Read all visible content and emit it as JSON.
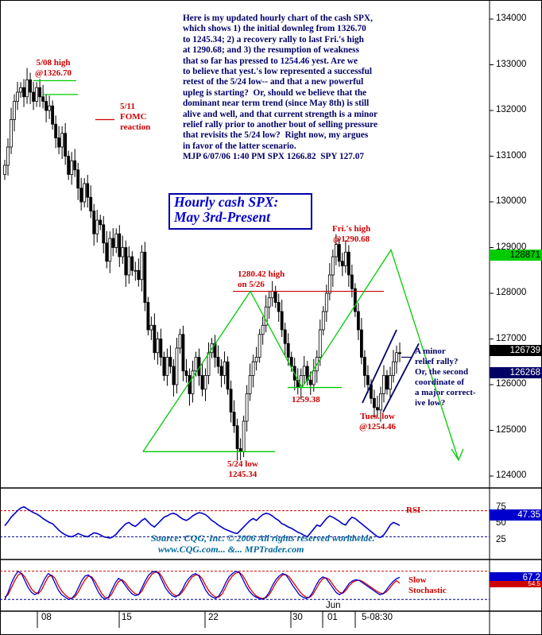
{
  "chart_data": {
    "type": "ohlc-candlestick",
    "title_box": [
      "Hourly cash SPX:",
      "May 3rd-Present"
    ],
    "commentary": "Here is my updated hourly chart of the cash SPX,\nwhich shows 1) the initial downleg from 1326.70\nto 1245.34; 2) a recovery rally to last Fri.'s high\nat 1290.68; and 3) the resumption of weakness\nthat so far has pressed to 1254.46 yest. Are we\nto believe that yest.'s low represented a successful\nretest of the 5/24 low-- and that a new powerful\nupleg is starting?  Or, should we believe that the\ndominant near term trend (since May 8th) is still\nalive and well, and that current strength is a minor\nrelief rally prior to another bout of selling pressure\nthat revisits the 5/24 low?  Right now, my argues\nin favor of the latter scenario.\nMJP 6/07/06 1:40 PM SPX 1266.82  SPY 127.07",
    "y_axis": {
      "ticks": [
        "134000",
        "133000",
        "132000",
        "131000",
        "130000",
        "129000",
        "128000",
        "127000",
        "126000",
        "125000",
        "124000"
      ],
      "min": 1237,
      "max": 1343
    },
    "x_axis": {
      "ticks": [
        "08",
        "15",
        "22",
        "30",
        "01",
        "Jun",
        "5-08:30"
      ]
    },
    "price_tags": {
      "green": "128871",
      "dark_top": "126739",
      "dark_bottom": "126268"
    },
    "key_levels": [
      {
        "label": "5/08 high\n@1326.70",
        "value": 1326.7
      },
      {
        "label": "5/24 low\n1245.34",
        "value": 1245.34
      },
      {
        "label": "1280.42 high\non 5/26",
        "value": 1280.42
      },
      {
        "label": "1259.38",
        "value": 1259.38
      },
      {
        "label": "Fri.'s high\n@1290.68",
        "value": 1290.68
      },
      {
        "label": "Tues. low\n@1254.46",
        "value": 1254.46
      }
    ],
    "annotations": {
      "fomc": "5/11\nFOMC\nreaction",
      "scenario": "A minor\nrelief rally?\nOr, the second\ncoordinate of\na major correct-\nive low?"
    },
    "price_path": [
      1308,
      1312,
      1318,
      1322,
      1324,
      1325,
      1323,
      1326.7,
      1324,
      1322,
      1325,
      1323,
      1322,
      1320,
      1321,
      1317,
      1314,
      1312,
      1315,
      1310,
      1306,
      1309,
      1307,
      1303,
      1300,
      1304,
      1301,
      1298,
      1293,
      1296,
      1295,
      1291,
      1287,
      1292,
      1290,
      1293,
      1288,
      1290,
      1284,
      1288,
      1285,
      1285,
      1283,
      1289,
      1278,
      1272,
      1273,
      1267,
      1270,
      1266,
      1262,
      1266,
      1264,
      1260,
      1268,
      1271,
      1263,
      1262,
      1258,
      1263,
      1266,
      1262,
      1259,
      1262,
      1267,
      1269,
      1266,
      1264,
      1262,
      1265,
      1259,
      1254,
      1251,
      1246,
      1245.34,
      1252,
      1258,
      1262,
      1265,
      1266,
      1271,
      1273,
      1277,
      1279,
      1280.42,
      1278,
      1276,
      1272,
      1269,
      1266,
      1264,
      1261,
      1259.38,
      1262,
      1264,
      1261,
      1260,
      1263,
      1266,
      1272,
      1276,
      1280,
      1284,
      1288,
      1290.68,
      1287,
      1286,
      1289,
      1284,
      1281,
      1276,
      1272,
      1266,
      1262,
      1260,
      1257,
      1255,
      1254.46,
      1258,
      1262,
      1259,
      1262,
      1265,
      1267,
      1266.8
    ],
    "rsi": {
      "label": "RSI",
      "ticks": [
        "75",
        "50",
        "25"
      ],
      "overbought": 70,
      "oversold": 30,
      "current": "47.35",
      "values": [
        47,
        53,
        60,
        65,
        70,
        74,
        76,
        73,
        70,
        67,
        65,
        62,
        58,
        55,
        52,
        50,
        45,
        40,
        36,
        33,
        31,
        30,
        32,
        35,
        33,
        31,
        30,
        33,
        36,
        35,
        33,
        30,
        29,
        28,
        30,
        34,
        40,
        45,
        50,
        52,
        48,
        46,
        50,
        55,
        58,
        53,
        48,
        45,
        50,
        55,
        60,
        62,
        65,
        66,
        64,
        60,
        57,
        55,
        58,
        62,
        65,
        67,
        66,
        64,
        60,
        55,
        52,
        48,
        45,
        42,
        40,
        38,
        36,
        35,
        40,
        45,
        50,
        55,
        58,
        55,
        60,
        64,
        66,
        65,
        62,
        58,
        55,
        50,
        48,
        45,
        43,
        40,
        37,
        35,
        32,
        30,
        36,
        42,
        48,
        46,
        52,
        58,
        62,
        60,
        57,
        54,
        50,
        48,
        55,
        60,
        58,
        54,
        50,
        46,
        42,
        38,
        34,
        30,
        29,
        33,
        40,
        48,
        52,
        50,
        47.35
      ]
    },
    "stochastic": {
      "label": "Slow\nStochastic",
      "current_top": "67.2",
      "current_bottom": "54.5",
      "k_values": [
        20,
        35,
        55,
        70,
        80,
        75,
        60,
        45,
        35,
        30,
        35,
        50,
        65,
        75,
        70,
        55,
        40,
        30,
        25,
        20,
        22,
        30,
        45,
        60,
        70,
        72,
        65,
        50,
        35,
        25,
        20,
        25,
        40,
        55,
        65,
        60,
        50,
        40,
        32,
        28,
        30,
        45,
        60,
        72,
        78,
        80,
        75,
        60,
        45,
        35,
        28,
        25,
        30,
        40,
        55,
        65,
        72,
        75,
        70,
        55,
        40,
        30,
        25,
        22,
        28,
        40,
        55,
        68,
        75,
        80,
        78,
        65,
        50,
        38,
        30,
        25,
        22,
        20,
        25,
        35,
        50,
        62,
        70,
        75,
        72,
        62,
        50,
        40,
        30,
        25,
        22,
        25,
        35,
        50,
        62,
        68,
        65,
        55,
        45,
        35,
        30,
        35,
        45,
        55,
        60,
        62,
        60,
        55,
        50,
        45,
        40,
        35,
        30,
        32,
        40,
        50,
        58,
        64,
        67.2
      ],
      "d_values": [
        25,
        30,
        45,
        60,
        72,
        76,
        68,
        55,
        42,
        35,
        32,
        40,
        55,
        68,
        72,
        65,
        50,
        38,
        30,
        24,
        22,
        26,
        36,
        50,
        62,
        70,
        68,
        58,
        45,
        32,
        24,
        23,
        32,
        46,
        58,
        62,
        56,
        46,
        38,
        32,
        30,
        38,
        52,
        64,
        74,
        78,
        78,
        68,
        54,
        42,
        33,
        28,
        28,
        35,
        46,
        58,
        68,
        72,
        72,
        64,
        50,
        38,
        30,
        25,
        25,
        32,
        46,
        60,
        70,
        76,
        78,
        72,
        60,
        46,
        36,
        28,
        24,
        22,
        23,
        30,
        42,
        55,
        65,
        72,
        73,
        68,
        58,
        48,
        38,
        30,
        25,
        24,
        30,
        42,
        55,
        64,
        66,
        62,
        52,
        42,
        35,
        33,
        40,
        50,
        57,
        60,
        61,
        58,
        53,
        48,
        43,
        38,
        34,
        32,
        36,
        44,
        53,
        60,
        54.5
      ]
    },
    "source_text": "Source: CQG, Inc. © 2006 All rights reserved worldwide.\n   www.CQG.com... &... MPTrader.com"
  }
}
